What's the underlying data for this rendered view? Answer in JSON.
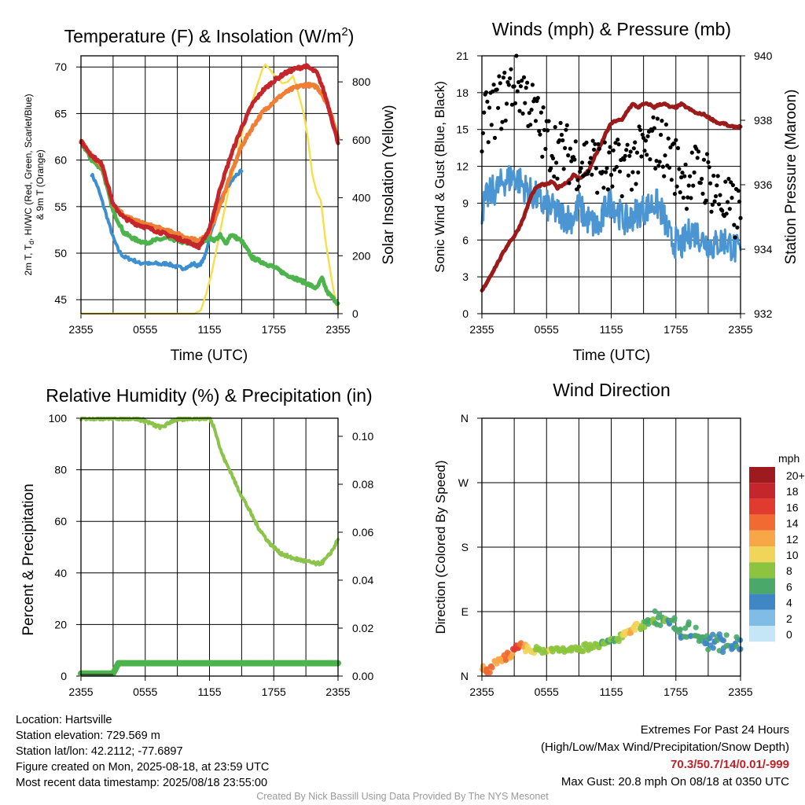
{
  "colors": {
    "temp": "#c4262b",
    "dewpoint": "#3d8fd0",
    "heat_index": "#4db34d",
    "temp_9m": "#f07f35",
    "solar": "#f5e04f",
    "sonic_wind": "#4b95d2",
    "gust": "#000000",
    "pressure": "#9b1b1b",
    "rh": "#8cc34b",
    "precip": "#4db34d"
  },
  "chart_data": [
    {
      "id": "temp",
      "type": "line",
      "title": "Temperature (F) & Insolation (W/m",
      "title_sup": "2",
      "title_close": ")",
      "xlabel": "Time (UTC)",
      "ylabel_line1": "2m T, T",
      "ylabel_sub": "d",
      "ylabel_line1b": ", HI/WC (Red, Green, Scarlet/Blue)",
      "ylabel_line2": "& 9m T (Orange)",
      "y2label": "Solar Insolation (Yellow)",
      "x_ticks": [
        "2355",
        "0555",
        "1155",
        "1755",
        "2355"
      ],
      "x_range_hours": [
        0,
        24
      ],
      "ylim": [
        43.5,
        71.2
      ],
      "y_ticks": [
        45,
        50,
        55,
        60,
        65,
        70
      ],
      "y2lim": [
        0,
        890
      ],
      "y2_ticks": [
        0,
        200,
        400,
        600,
        800
      ],
      "series": [
        {
          "key": "temp",
          "name": "2m T",
          "axis": "y",
          "width": 5,
          "x": [
            0,
            1,
            2,
            3,
            4,
            5,
            6,
            7,
            8,
            9,
            10,
            11,
            12,
            13,
            14,
            15,
            16,
            17,
            18,
            19,
            20,
            21,
            22,
            22.5,
            23,
            23.5,
            24
          ],
          "y": [
            62,
            60.5,
            59.5,
            55.2,
            53.8,
            53.2,
            52.8,
            52.4,
            52,
            51.6,
            51.2,
            50.7,
            52.5,
            57,
            60.5,
            63.5,
            66,
            67.5,
            68.5,
            69.3,
            69.8,
            70.1,
            69.4,
            68,
            66.2,
            64,
            61.8
          ]
        },
        {
          "key": "temp_9m",
          "name": "9m T",
          "axis": "y",
          "width": 5,
          "x": [
            0,
            1,
            2,
            3,
            4,
            5,
            6,
            7,
            8,
            9,
            10,
            11,
            12,
            13,
            14,
            15,
            16,
            17,
            18,
            19,
            20,
            21,
            22,
            22.5,
            23,
            23.5,
            24
          ],
          "y": [
            62,
            60.5,
            59.2,
            55.3,
            54.1,
            53.5,
            53.1,
            52.8,
            52.4,
            52.1,
            51.6,
            51.3,
            52.3,
            55.2,
            58.5,
            61.5,
            63.5,
            65.2,
            66.3,
            67.2,
            67.8,
            68.1,
            67.9,
            67.1,
            66,
            64.4,
            62.3
          ]
        },
        {
          "key": "heat_index",
          "name": "HI/WC",
          "axis": "y",
          "width": 5,
          "x": [
            0,
            1,
            2,
            3,
            4,
            5,
            6,
            7,
            8,
            9,
            10,
            11,
            12,
            12.5,
            13,
            13.5,
            14,
            15,
            16,
            17,
            18,
            19,
            20,
            21,
            22,
            22.5,
            23,
            23.5,
            24
          ],
          "y": [
            62,
            60,
            59,
            54.5,
            52.2,
            51.5,
            51.1,
            51.4,
            51.6,
            51.4,
            51,
            51.1,
            51.7,
            51.4,
            51.9,
            51,
            52,
            51.3,
            49.5,
            49,
            48.5,
            47.8,
            47.3,
            46.8,
            46.2,
            47.3,
            45.8,
            45.2,
            44.6
          ]
        },
        {
          "key": "dewpoint",
          "name": "Td",
          "axis": "y",
          "width": 4,
          "x": [
            1,
            1.5,
            2,
            2.5,
            3,
            3.5,
            4,
            4.5,
            5,
            5.5,
            6,
            6.5,
            7,
            7.5,
            8,
            8.5,
            9,
            9.5,
            10,
            10.5,
            11,
            11.5,
            12,
            12.5,
            13,
            13.5,
            14,
            14.5,
            15
          ],
          "y": [
            58.5,
            57.3,
            55.5,
            53.6,
            51.7,
            50.3,
            49.6,
            49.4,
            49.2,
            48.9,
            49,
            48.8,
            48.9,
            48.8,
            48.9,
            48.7,
            48.5,
            48.4,
            48.5,
            48.9,
            48.6,
            49.4,
            51.6,
            53.6,
            55.4,
            56.8,
            57.6,
            58.4,
            58.8
          ]
        },
        {
          "key": "solar",
          "name": "Solar Insolation",
          "axis": "y2",
          "width": 2.5,
          "x": [
            0,
            10.6,
            11.2,
            11.7,
            12.2,
            12.7,
            13.3,
            13.8,
            14.4,
            14.9,
            15.3,
            15.7,
            16.1,
            16.5,
            16.9,
            17.2,
            17.6,
            18,
            18.4,
            18.8,
            19.3,
            19.8,
            20.3,
            20.8,
            21.2,
            21.6,
            22,
            22.4,
            22.8,
            23.2,
            23.6,
            24
          ],
          "y": [
            0,
            0,
            12,
            70,
            140,
            230,
            340,
            430,
            520,
            600,
            660,
            700,
            745,
            795,
            840,
            860,
            845,
            825,
            810,
            795,
            800,
            820,
            760,
            690,
            600,
            480,
            420,
            390,
            260,
            165,
            75,
            15
          ]
        }
      ]
    },
    {
      "id": "wind",
      "type": "line",
      "title": "Winds (mph) & Pressure (mb)",
      "xlabel": "Time (UTC)",
      "ylabel": "Sonic Wind & Gust (Blue, Black)",
      "y2label": "Station Pressure (Maroon)",
      "x_ticks": [
        "2355",
        "0555",
        "1155",
        "1755",
        "2355"
      ],
      "x_range_hours": [
        0,
        24
      ],
      "ylim": [
        0,
        21
      ],
      "y_ticks": [
        0,
        3,
        6,
        9,
        12,
        15,
        18,
        21
      ],
      "y2lim": [
        932,
        940
      ],
      "y2_ticks": [
        932,
        934,
        936,
        938,
        940
      ],
      "series": [
        {
          "key": "sonic_wind",
          "name": "Sonic Wind",
          "axis": "y",
          "width": 3,
          "noise": 1.3,
          "x": [
            0,
            0.5,
            1,
            1.5,
            2,
            2.5,
            3,
            3.5,
            4,
            4.5,
            5,
            5.5,
            6,
            6.5,
            7,
            7.5,
            8,
            8.5,
            9,
            9.5,
            10,
            10.5,
            11,
            11.5,
            12,
            12.5,
            13,
            13.5,
            14,
            14.5,
            15,
            15.5,
            16,
            16.5,
            17,
            17.5,
            18,
            18.5,
            19,
            19.5,
            20,
            20.5,
            21,
            21.5,
            22,
            22.5,
            23,
            23.5,
            24
          ],
          "y": [
            8.5,
            9.5,
            10,
            10.2,
            10.8,
            11,
            11.2,
            10.8,
            10.2,
            9.8,
            9.5,
            9,
            8.8,
            8.5,
            8.2,
            8,
            7.8,
            7.8,
            8.8,
            8,
            7.5,
            7.2,
            7,
            8.8,
            9.2,
            8.5,
            7.8,
            7.5,
            8,
            8.3,
            8.5,
            8.7,
            9,
            8.7,
            7.5,
            6,
            5.8,
            5.5,
            6.2,
            6.8,
            6.5,
            6,
            5.8,
            5.5,
            5.8,
            6,
            5.7,
            5.2,
            5.2
          ]
        },
        {
          "key": "pressure",
          "name": "Station Pressure",
          "axis": "y2",
          "width": 5,
          "x": [
            0,
            0.5,
            1,
            1.5,
            2,
            2.5,
            3,
            3.5,
            4,
            4.5,
            5,
            5.5,
            6,
            6.5,
            7,
            7.5,
            8,
            8.5,
            9,
            9.5,
            10,
            10.5,
            11,
            11.5,
            12,
            12.5,
            13,
            13.5,
            14,
            14.5,
            15,
            15.5,
            16,
            16.5,
            17,
            17.5,
            18,
            18.5,
            19,
            19.5,
            20,
            20.5,
            21,
            21.5,
            22,
            22.5,
            23,
            23.5,
            24
          ],
          "y": [
            932.7,
            933,
            933.3,
            933.6,
            933.9,
            934.2,
            934.4,
            934.7,
            935.1,
            935.6,
            935.9,
            936,
            936,
            936.1,
            935.9,
            936,
            936.1,
            936.3,
            936.2,
            936.3,
            936.5,
            936.9,
            937.2,
            937.6,
            937.9,
            938,
            938,
            938.3,
            938.5,
            938.4,
            938.5,
            938.5,
            938.4,
            938.5,
            938.5,
            938.4,
            938.4,
            938.5,
            938.4,
            938.3,
            938.2,
            938.2,
            938.1,
            938,
            937.9,
            937.9,
            937.8,
            937.8,
            937.8
          ]
        },
        {
          "key": "gust",
          "name": "Gust",
          "axis": "y",
          "type": "scatter",
          "noise": 2.5,
          "x": [
            0,
            1,
            2,
            3,
            4,
            5,
            6,
            7,
            8,
            9,
            10,
            11,
            12,
            13,
            14,
            15,
            16,
            17,
            18,
            19,
            20,
            21,
            22,
            23,
            24
          ],
          "y": [
            15,
            16.5,
            17.5,
            19,
            18,
            16,
            14,
            13.5,
            13,
            12.5,
            12.5,
            12,
            11.5,
            12,
            12.5,
            13,
            14,
            13.5,
            12,
            11,
            11.5,
            11,
            9.5,
            8.5,
            8
          ]
        }
      ]
    },
    {
      "id": "rh",
      "type": "line",
      "title": "Relative Humidity (%) & Precipitation (in)",
      "xlabel": "",
      "ylabel": "Percent & Precipitation",
      "x_ticks": [
        "2355",
        "0555",
        "1155",
        "1755",
        "2355"
      ],
      "x_range_hours": [
        0,
        24
      ],
      "ylim": [
        0,
        100
      ],
      "y_ticks": [
        0,
        20,
        40,
        60,
        80,
        100
      ],
      "y2lim": [
        0,
        0.1
      ],
      "y2_ticks": [
        "0.00",
        "0.02",
        "0.04",
        "0.06",
        "0.08",
        "0.10"
      ],
      "series": [
        {
          "key": "rh",
          "name": "Relative Humidity",
          "axis": "y",
          "width": 4,
          "x": [
            0,
            1,
            2,
            3,
            4,
            5,
            6,
            6.5,
            7,
            7.5,
            8,
            8.5,
            9,
            9.5,
            10,
            10.5,
            11,
            11.5,
            12,
            12.5,
            13,
            13.5,
            14,
            14.5,
            15,
            15.5,
            16,
            16.5,
            17,
            17.5,
            18,
            18.5,
            19,
            19.5,
            20,
            20.5,
            21,
            21.5,
            22,
            22.5,
            23,
            23.5,
            24
          ],
          "y": [
            100,
            100,
            100,
            100,
            100,
            100,
            99,
            98,
            97,
            96.5,
            97.5,
            99,
            99.5,
            99.5,
            100,
            100,
            100,
            100,
            100,
            96,
            88,
            83,
            79,
            74,
            70,
            66,
            62,
            58,
            55,
            52,
            50,
            48,
            47,
            46,
            45.5,
            45,
            44.5,
            44,
            43.5,
            44,
            46,
            49,
            53
          ]
        },
        {
          "key": "precip",
          "name": "Precipitation",
          "axis": "y",
          "width": 8,
          "x": [
            0,
            3,
            3.25,
            3.5,
            24
          ],
          "y": [
            1,
            1,
            3,
            5,
            5
          ]
        }
      ]
    },
    {
      "id": "dir",
      "type": "scatter",
      "title": "Wind Direction",
      "ylabel": "Direction (Colored By Speed)",
      "x_ticks": [
        "2355",
        "0555",
        "1155",
        "1755",
        "2355"
      ],
      "x_range_hours": [
        0,
        24
      ],
      "ylim_deg": [
        0,
        360
      ],
      "y_ticks": [
        "N",
        "E",
        "S",
        "W",
        "N"
      ],
      "points_hours": [
        0,
        0.3,
        0.6,
        0.9,
        1.2,
        1.5,
        1.8,
        2.1,
        2.4,
        2.7,
        3,
        3.3,
        3.6,
        3.9,
        4.2,
        4.5,
        4.8,
        5.1,
        5.4,
        5.7,
        6,
        6.3,
        6.6,
        6.9,
        7.2,
        7.5,
        7.8,
        8.1,
        8.4,
        8.7,
        9,
        9.3,
        9.6,
        9.9,
        10.2,
        10.5,
        10.8,
        11.1,
        11.4,
        11.7,
        12,
        12.3,
        12.6,
        12.9,
        13.2,
        13.5,
        13.8,
        14.1,
        14.4,
        14.7,
        15,
        15.3,
        15.6,
        15.9,
        16.2,
        16.5,
        16.8,
        17.1,
        17.4,
        17.7,
        18,
        18.3,
        18.6,
        18.9,
        19.2,
        19.5,
        19.8,
        20.1,
        20.4,
        20.7,
        21,
        21.3,
        21.6,
        21.9,
        22.2,
        22.5,
        22.8,
        23.1,
        23.4,
        23.7,
        24
      ],
      "points_deg": [
        12,
        8,
        5,
        14,
        18,
        20,
        22,
        26,
        30,
        28,
        34,
        40,
        45,
        42,
        38,
        35,
        36,
        37,
        36,
        36,
        35,
        36,
        38,
        37,
        36,
        38,
        37,
        39,
        38,
        40,
        40,
        38,
        42,
        40,
        42,
        44,
        43,
        45,
        44,
        48,
        50,
        52,
        50,
        55,
        58,
        60,
        62,
        66,
        70,
        68,
        72,
        76,
        74,
        78,
        82,
        80,
        75,
        70,
        72,
        68,
        74,
        60,
        62,
        58,
        65,
        55,
        58,
        52,
        54,
        50,
        46,
        48,
        44,
        46,
        48,
        42,
        50,
        44,
        46,
        48,
        46
      ],
      "points_speed": [
        12,
        13,
        14,
        13,
        12,
        11,
        12,
        13,
        14,
        12,
        15,
        16,
        13,
        11,
        10,
        9,
        9,
        8,
        8,
        8,
        8,
        9,
        8,
        8,
        8,
        7,
        8,
        8,
        8,
        8,
        7,
        8,
        7,
        7,
        8,
        7,
        7,
        6,
        7,
        6,
        7,
        6,
        7,
        8,
        9,
        10,
        11,
        10,
        9,
        8,
        7,
        6,
        5,
        7,
        6,
        5,
        6,
        7,
        4,
        6,
        5,
        6,
        4,
        5,
        6,
        4,
        5,
        6,
        5,
        4,
        5,
        3,
        4,
        5,
        4,
        3,
        5,
        4,
        4,
        5,
        4
      ],
      "legend_title": "mph",
      "legend_labels": [
        "20+",
        "18",
        "16",
        "14",
        "12",
        "10",
        "8",
        "6",
        "4",
        "2",
        "0"
      ],
      "legend_colors": [
        "#9d1b1e",
        "#c4262b",
        "#e13a2f",
        "#f06a32",
        "#f8a746",
        "#f1d55a",
        "#8dc43f",
        "#4aa86a",
        "#3f86c4",
        "#7fbde6",
        "#c4e6f7"
      ]
    }
  ],
  "footer": {
    "location": "Location: Hartsville",
    "elevation": "Station elevation: 729.569 m",
    "latlon": "Station lat/lon: 42.2112; -77.6897",
    "created": "Figure created on Mon, 2025-08-18, at 23:59 UTC",
    "recent": "Most recent data timestamp: 2025/08/18 23:55:00",
    "extremes_title": "Extremes For Past 24 Hours",
    "extremes_desc": "(High/Low/Max Wind/Precipitation/Snow Depth)",
    "extremes_values": "70.3/50.7/14/0.01/-999",
    "max_gust": "Max Gust: 20.8 mph On 08/18 at 0350 UTC",
    "credit": "Created By Nick Bassill Using Data Provided By The NYS Mesonet"
  }
}
